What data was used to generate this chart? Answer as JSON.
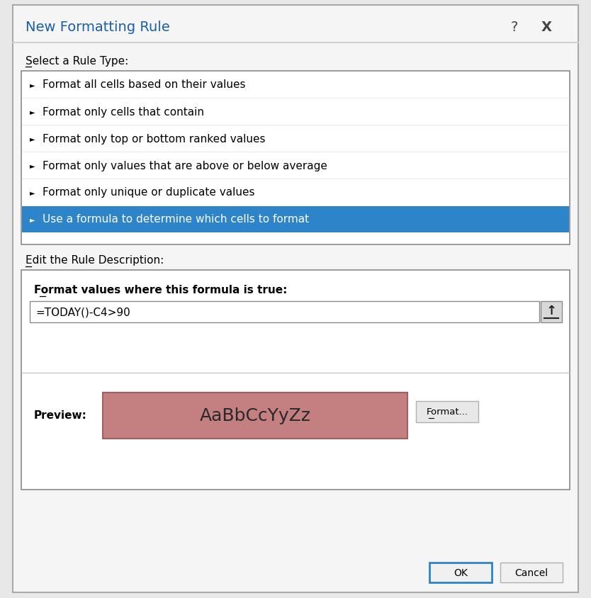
{
  "bg_color": "#e8e8e8",
  "dialog_bg": "#f5f5f5",
  "white": "#ffffff",
  "title": "New Formatting Rule",
  "title_fontsize": 14,
  "help_char": "?",
  "close_char": "X",
  "select_rule_label": "Select a Rule Type:",
  "rule_items": [
    "Format all cells based on their values",
    "Format only cells that contain",
    "Format only top or bottom ranked values",
    "Format only values that are above or below average",
    "Format only unique or duplicate values",
    "Use a formula to determine which cells to format"
  ],
  "selected_index": 5,
  "selected_bg": "#2e84c8",
  "selected_fg": "#ffffff",
  "list_bg": "#ffffff",
  "list_border": "#8a8a8a",
  "edit_label": "Edit the Rule Description:",
  "formula_label": "Format values where this formula is true:",
  "formula_text": "=TODAY()-C4>90",
  "preview_label": "Preview:",
  "preview_text": "AaBbCcYyZz",
  "preview_bg": "#c47f80",
  "preview_border": "#a06060",
  "format_btn": "Format...",
  "ok_btn": "OK",
  "cancel_btn": "Cancel",
  "ok_border": "#2e84c8",
  "normal_btn_bg": "#e8e8e8",
  "normal_btn_border": "#b0b0b0",
  "arrow": "►",
  "item_fontsize": 11,
  "label_fontsize": 11,
  "formula_fontsize": 11,
  "preview_fontsize": 18,
  "title_color": "#1a5fa8",
  "dialog_border": "#aaaaaa",
  "separator_color": "#d0d0d0",
  "inner_sep_color": "#c8c8c8"
}
